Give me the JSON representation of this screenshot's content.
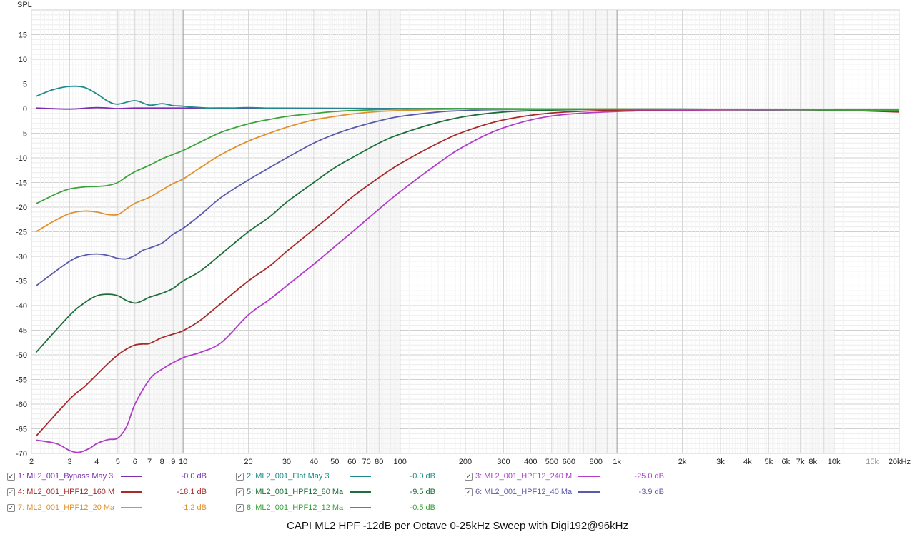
{
  "chart_data": {
    "type": "line",
    "title": "CAPI ML2 HPF -12dB per Octave 0-25kHz Sweep with Digi192@96kHz",
    "ylabel": "SPL",
    "xlabel": "",
    "xscale": "log",
    "xlim": [
      2,
      20000
    ],
    "ylim": [
      -70,
      20
    ],
    "grid": true,
    "legend_position": "bottom",
    "y_ticks": [
      15,
      10,
      5,
      0,
      -5,
      -10,
      -15,
      -20,
      -25,
      -30,
      -35,
      -40,
      -45,
      -50,
      -55,
      -60,
      -65,
      -70
    ],
    "x_ticks": [
      {
        "value": 2,
        "label": "2"
      },
      {
        "value": 3,
        "label": "3"
      },
      {
        "value": 4,
        "label": "4"
      },
      {
        "value": 5,
        "label": "5"
      },
      {
        "value": 6,
        "label": "6"
      },
      {
        "value": 7,
        "label": "7"
      },
      {
        "value": 8,
        "label": "8"
      },
      {
        "value": 9,
        "label": "9"
      },
      {
        "value": 10,
        "label": "10"
      },
      {
        "value": 20,
        "label": "20"
      },
      {
        "value": 30,
        "label": "30"
      },
      {
        "value": 40,
        "label": "40"
      },
      {
        "value": 50,
        "label": "50"
      },
      {
        "value": 60,
        "label": "60"
      },
      {
        "value": 70,
        "label": "70"
      },
      {
        "value": 80,
        "label": "80"
      },
      {
        "value": 100,
        "label": "100"
      },
      {
        "value": 200,
        "label": "200"
      },
      {
        "value": 300,
        "label": "300"
      },
      {
        "value": 400,
        "label": "400"
      },
      {
        "value": 500,
        "label": "500"
      },
      {
        "value": 600,
        "label": "600"
      },
      {
        "value": 800,
        "label": "800"
      },
      {
        "value": 1000,
        "label": "1k"
      },
      {
        "value": 2000,
        "label": "2k"
      },
      {
        "value": 3000,
        "label": "3k"
      },
      {
        "value": 4000,
        "label": "4k"
      },
      {
        "value": 5000,
        "label": "5k"
      },
      {
        "value": 6000,
        "label": "6k"
      },
      {
        "value": 7000,
        "label": "7k"
      },
      {
        "value": 8000,
        "label": "8k"
      },
      {
        "value": 10000,
        "label": "10k"
      },
      {
        "value": 15000,
        "label": "15k",
        "muted": true
      },
      {
        "value": 20000,
        "label": "20kHz"
      }
    ],
    "series": [
      {
        "name": "1: ML2_001_Bypass May 3",
        "color": "#7b2fb0",
        "value_label": "-0.0 dB",
        "x": [
          2.1,
          3,
          4,
          5,
          6,
          8,
          10,
          20,
          100,
          1000,
          10000,
          20000
        ],
        "y": [
          0.1,
          -0.1,
          0.2,
          0.0,
          0.1,
          0.1,
          0.1,
          0.1,
          0.0,
          -0.1,
          -0.2,
          -0.3
        ]
      },
      {
        "name": "2: ML2_001_Flat May 3",
        "color": "#1f8b8b",
        "value_label": "-0.0 dB",
        "x": [
          2.1,
          2.5,
          3,
          3.5,
          4,
          4.5,
          5,
          6,
          7,
          8,
          9,
          10,
          11,
          15,
          20,
          30,
          100,
          1000,
          10000,
          20000
        ],
        "y": [
          2.5,
          3.8,
          4.5,
          4.3,
          3.0,
          1.5,
          0.9,
          1.6,
          0.7,
          1.0,
          0.6,
          0.5,
          0.3,
          0.0,
          0.2,
          0.0,
          0.0,
          -0.1,
          -0.2,
          -0.3
        ]
      },
      {
        "name": "3: ML2_001_HPF12_240 M",
        "color": "#b03cc8",
        "value_label": "-25.0 dB",
        "x": [
          2.1,
          2.6,
          3,
          3.3,
          3.7,
          4,
          4.5,
          5,
          5.5,
          6,
          7,
          8,
          10,
          12,
          15,
          20,
          25,
          30,
          40,
          50,
          60,
          80,
          100,
          150,
          200,
          300,
          500,
          1000,
          2000,
          5000,
          10000,
          20000
        ],
        "y": [
          -67.3,
          -68.0,
          -69.4,
          -69.8,
          -69.0,
          -68.0,
          -67.2,
          -66.9,
          -64.5,
          -60.0,
          -55.0,
          -52.9,
          -50.6,
          -49.5,
          -47.5,
          -41.9,
          -38.8,
          -36.0,
          -31.6,
          -28.0,
          -25.1,
          -20.4,
          -16.9,
          -11.1,
          -7.5,
          -3.9,
          -1.5,
          -0.6,
          -0.3,
          -0.3,
          -0.3,
          -0.5
        ]
      },
      {
        "name": "4: ML2_001_HPF12_160 M",
        "color": "#a82a2a",
        "value_label": "-18.1 dB",
        "x": [
          2.1,
          3,
          3.5,
          4,
          4.5,
          5,
          5.5,
          6,
          6.5,
          7,
          8,
          9,
          10,
          12,
          15,
          20,
          25,
          30,
          40,
          50,
          60,
          80,
          100,
          150,
          200,
          300,
          500,
          1000,
          2000,
          5000,
          10000,
          20000
        ],
        "y": [
          -66.5,
          -59.0,
          -56.5,
          -54.0,
          -51.8,
          -50.0,
          -48.8,
          -48.0,
          -47.8,
          -47.7,
          -46.5,
          -45.8,
          -45.1,
          -43.0,
          -39.5,
          -35.0,
          -32.0,
          -29.0,
          -24.5,
          -21.0,
          -18.0,
          -14.0,
          -11.2,
          -7.0,
          -4.6,
          -2.3,
          -0.9,
          -0.3,
          -0.2,
          -0.2,
          -0.3,
          -0.7
        ]
      },
      {
        "name": "5: ML2_001_HPF12_80 Ma",
        "color": "#1d6e3a",
        "value_label": "-9.5 dB",
        "x": [
          2.1,
          3,
          3.5,
          4,
          4.5,
          5,
          5.5,
          6,
          6.5,
          7,
          8,
          9,
          10,
          12,
          15,
          20,
          25,
          30,
          40,
          50,
          60,
          80,
          100,
          150,
          200,
          300,
          500,
          1000,
          2000,
          5000,
          10000,
          20000
        ],
        "y": [
          -49.5,
          -42.0,
          -39.5,
          -38.0,
          -37.7,
          -38.0,
          -39.0,
          -39.5,
          -39.0,
          -38.3,
          -37.5,
          -36.5,
          -35.0,
          -33.0,
          -29.5,
          -25.0,
          -22.0,
          -19.0,
          -15.0,
          -12.0,
          -10.0,
          -7.0,
          -5.2,
          -2.8,
          -1.6,
          -0.7,
          -0.3,
          -0.1,
          -0.1,
          -0.2,
          -0.3,
          -0.6
        ]
      },
      {
        "name": "6: ML2_001_HPF12_40 Ma",
        "color": "#5a5aac",
        "value_label": "-3.9 dB",
        "x": [
          2.1,
          3,
          3.5,
          4,
          4.5,
          5,
          5.5,
          6,
          6.5,
          7,
          8,
          9,
          10,
          12,
          15,
          20,
          25,
          30,
          40,
          50,
          60,
          80,
          100,
          150,
          200,
          300,
          1000,
          20000
        ],
        "y": [
          -36.0,
          -31.0,
          -29.8,
          -29.5,
          -29.8,
          -30.4,
          -30.5,
          -29.8,
          -28.8,
          -28.3,
          -27.3,
          -25.5,
          -24.3,
          -21.6,
          -18.0,
          -14.5,
          -12.0,
          -10.0,
          -7.0,
          -5.2,
          -4.0,
          -2.5,
          -1.6,
          -0.7,
          -0.4,
          -0.2,
          -0.1,
          -0.3
        ]
      },
      {
        "name": "7: ML2_001_HPF12_20 Ma",
        "color": "#e0912d",
        "value_label": "-1.2 dB",
        "x": [
          2.1,
          2.5,
          3,
          3.5,
          4,
          4.5,
          5,
          5.5,
          6,
          7,
          8,
          9,
          10,
          12,
          15,
          20,
          25,
          30,
          40,
          50,
          60,
          80,
          100,
          200,
          1000,
          20000
        ],
        "y": [
          -25.0,
          -23.0,
          -21.3,
          -20.8,
          -21.0,
          -21.5,
          -21.5,
          -20.3,
          -19.2,
          -18.0,
          -16.5,
          -15.2,
          -14.3,
          -12.0,
          -9.3,
          -6.6,
          -5.0,
          -3.8,
          -2.3,
          -1.6,
          -1.1,
          -0.6,
          -0.4,
          -0.1,
          -0.1,
          -0.3
        ]
      },
      {
        "name": "8: ML2_001_HPF12_12 Ma",
        "color": "#3aa33a",
        "value_label": "-0.5 dB",
        "x": [
          2.1,
          2.6,
          3,
          3.5,
          4,
          4.5,
          5,
          5.5,
          6,
          7,
          8,
          9,
          10,
          12,
          15,
          20,
          25,
          30,
          40,
          50,
          60,
          80,
          100,
          200,
          1000,
          20000
        ],
        "y": [
          -19.3,
          -17.3,
          -16.3,
          -15.9,
          -15.8,
          -15.6,
          -15.0,
          -13.8,
          -12.8,
          -11.5,
          -10.2,
          -9.3,
          -8.5,
          -6.8,
          -4.8,
          -3.1,
          -2.2,
          -1.6,
          -1.0,
          -0.6,
          -0.4,
          -0.2,
          -0.1,
          0.0,
          -0.1,
          -0.3
        ]
      }
    ]
  }
}
